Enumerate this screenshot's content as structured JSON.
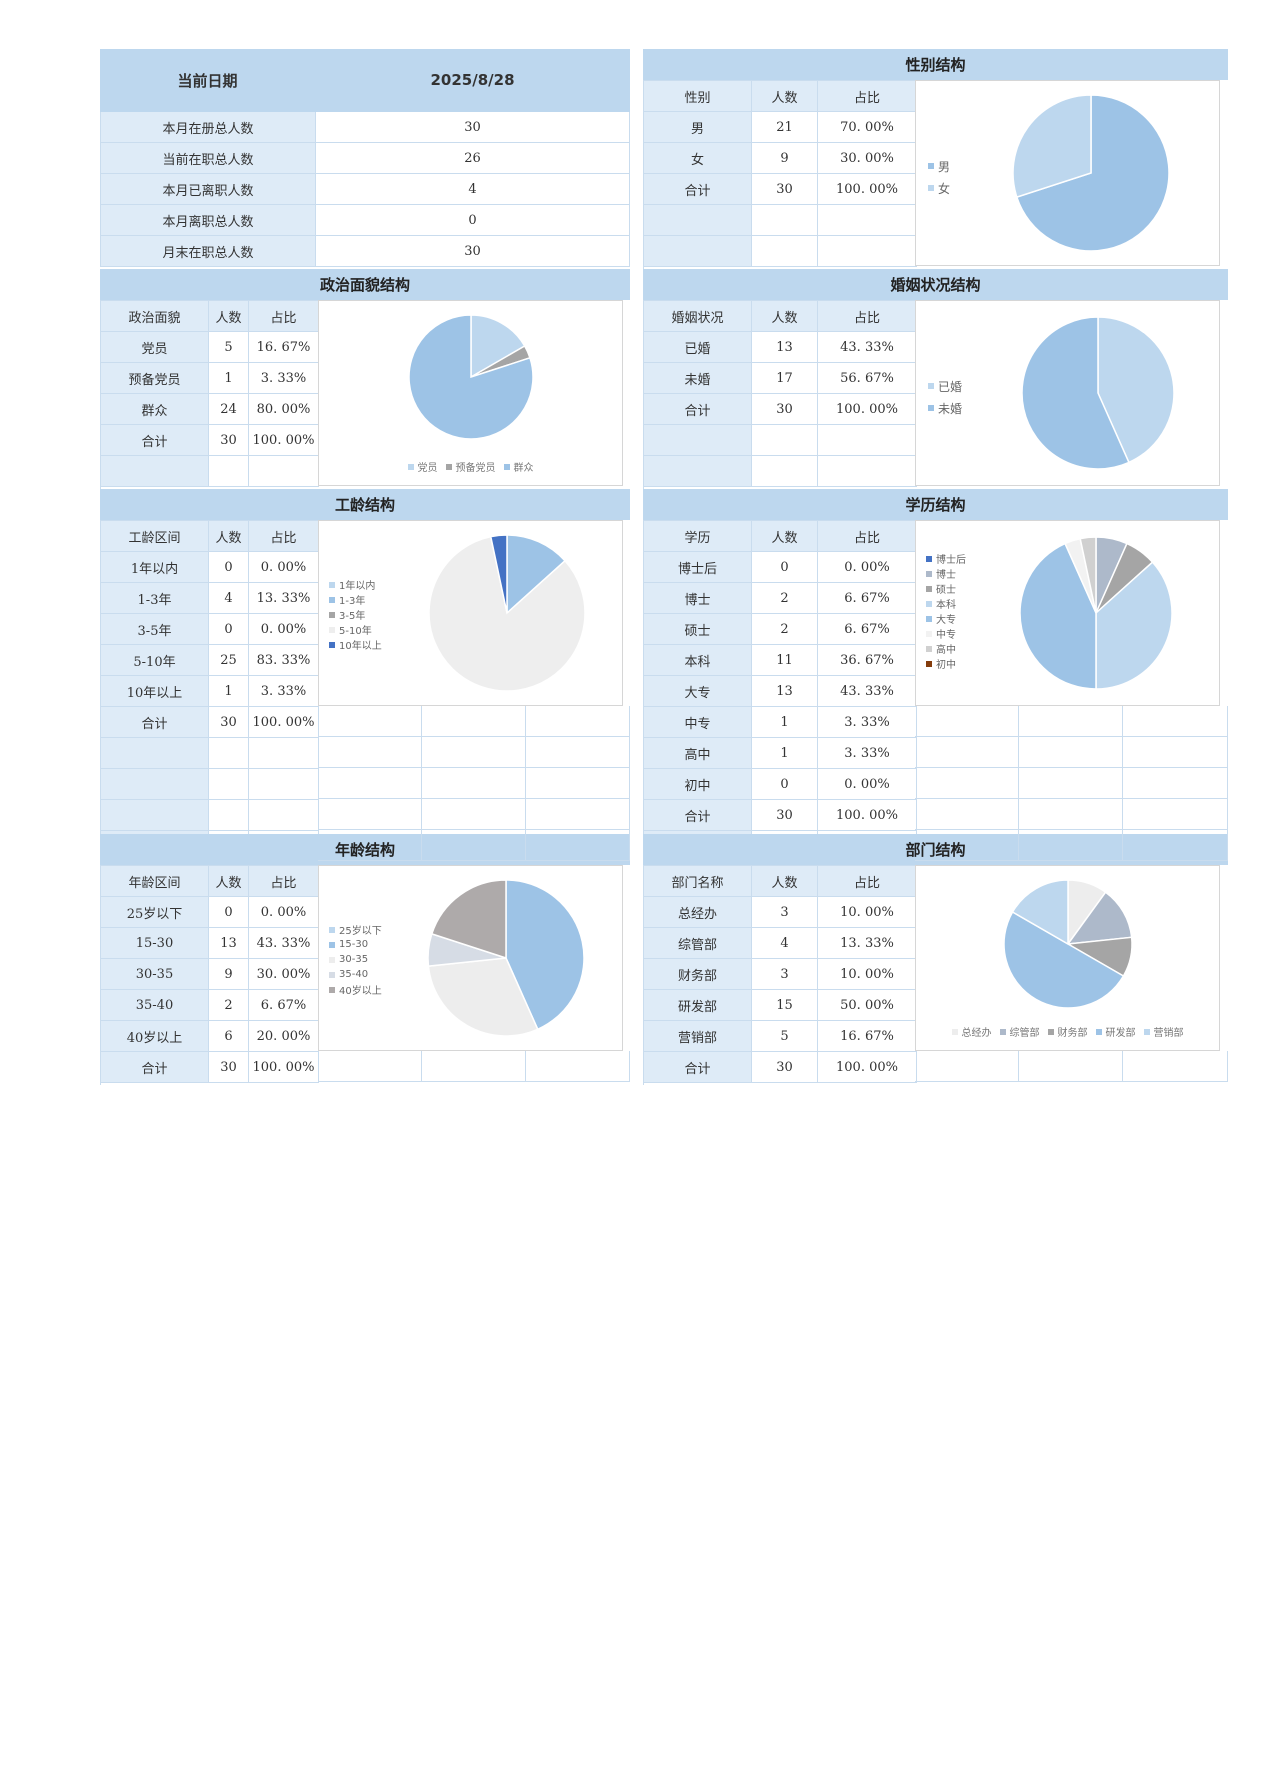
{
  "summary": {
    "date_label": "当前日期",
    "date_value": "2025/8/28",
    "rows": [
      {
        "label": "本月在册总人数",
        "value": "30"
      },
      {
        "label": "当前在职总人数",
        "value": "26"
      },
      {
        "label": "本月已离职人数",
        "value": "4"
      },
      {
        "label": "本月离职总人数",
        "value": "0"
      },
      {
        "label": "月末在职总人数",
        "value": "30"
      }
    ]
  },
  "sections": {
    "gender": {
      "title": "性别结构",
      "headers": [
        "性别",
        "人数",
        "占比"
      ],
      "rows": [
        [
          "男",
          "21",
          "70. 00%"
        ],
        [
          "女",
          "9",
          "30. 00%"
        ],
        [
          "合计",
          "30",
          "100. 00%"
        ]
      ]
    },
    "political": {
      "title": "政治面貌结构",
      "headers": [
        "政治面貌",
        "人数",
        "占比"
      ],
      "rows": [
        [
          "党员",
          "5",
          "16. 67%"
        ],
        [
          "预备党员",
          "1",
          "3. 33%"
        ],
        [
          "群众",
          "24",
          "80. 00%"
        ],
        [
          "合计",
          "30",
          "100. 00%"
        ]
      ]
    },
    "marital": {
      "title": "婚姻状况结构",
      "headers": [
        "婚姻状况",
        "人数",
        "占比"
      ],
      "rows": [
        [
          "已婚",
          "13",
          "43. 33%"
        ],
        [
          "未婚",
          "17",
          "56. 67%"
        ],
        [
          "合计",
          "30",
          "100. 00%"
        ]
      ]
    },
    "tenure": {
      "title": "工龄结构",
      "headers": [
        "工龄区间",
        "人数",
        "占比"
      ],
      "rows": [
        [
          "1年以内",
          "0",
          "0. 00%"
        ],
        [
          "1-3年",
          "4",
          "13. 33%"
        ],
        [
          "3-5年",
          "0",
          "0. 00%"
        ],
        [
          "5-10年",
          "25",
          "83. 33%"
        ],
        [
          "10年以上",
          "1",
          "3. 33%"
        ],
        [
          "合计",
          "30",
          "100. 00%"
        ]
      ]
    },
    "education": {
      "title": "学历结构",
      "headers": [
        "学历",
        "人数",
        "占比"
      ],
      "rows": [
        [
          "博士后",
          "0",
          "0. 00%"
        ],
        [
          "博士",
          "2",
          "6. 67%"
        ],
        [
          "硕士",
          "2",
          "6. 67%"
        ],
        [
          "本科",
          "11",
          "36. 67%"
        ],
        [
          "大专",
          "13",
          "43. 33%"
        ],
        [
          "中专",
          "1",
          "3. 33%"
        ],
        [
          "高中",
          "1",
          "3. 33%"
        ],
        [
          "初中",
          "0",
          "0. 00%"
        ],
        [
          "合计",
          "30",
          "100. 00%"
        ]
      ]
    },
    "age": {
      "title": "年龄结构",
      "headers": [
        "年龄区间",
        "人数",
        "占比"
      ],
      "rows": [
        [
          "25岁以下",
          "0",
          "0. 00%"
        ],
        [
          "15-30",
          "13",
          "43. 33%"
        ],
        [
          "30-35",
          "9",
          "30. 00%"
        ],
        [
          "35-40",
          "2",
          "6. 67%"
        ],
        [
          "40岁以上",
          "6",
          "20. 00%"
        ],
        [
          "合计",
          "30",
          "100. 00%"
        ]
      ]
    },
    "department": {
      "title": "部门结构",
      "headers": [
        "部门名称",
        "人数",
        "占比"
      ],
      "rows": [
        [
          "总经办",
          "3",
          "10. 00%"
        ],
        [
          "综管部",
          "4",
          "13. 33%"
        ],
        [
          "财务部",
          "3",
          "10. 00%"
        ],
        [
          "研发部",
          "15",
          "50. 00%"
        ],
        [
          "营销部",
          "5",
          "16. 67%"
        ],
        [
          "合计",
          "30",
          "100. 00%"
        ]
      ]
    }
  },
  "chart_data": [
    {
      "id": "gender",
      "type": "pie",
      "title": "",
      "categories": [
        "男",
        "女"
      ],
      "values": [
        21,
        9
      ],
      "colors": [
        "#9dc3e6",
        "#bdd7ee"
      ],
      "legend": "left"
    },
    {
      "id": "political",
      "type": "pie",
      "title": "",
      "categories": [
        "党员",
        "预备党员",
        "群众"
      ],
      "values": [
        5,
        1,
        24
      ],
      "colors": [
        "#bdd7ee",
        "#a5a5a5",
        "#9dc3e6"
      ],
      "legend": "bottom"
    },
    {
      "id": "marital",
      "type": "pie",
      "title": "",
      "categories": [
        "已婚",
        "未婚"
      ],
      "values": [
        13,
        17
      ],
      "colors": [
        "#bdd7ee",
        "#9dc3e6"
      ],
      "legend": "left"
    },
    {
      "id": "tenure",
      "type": "pie",
      "title": "",
      "categories": [
        "1年以内",
        "1-3年",
        "3-5年",
        "5-10年",
        "10年以上"
      ],
      "values": [
        0,
        4,
        0,
        25,
        1
      ],
      "colors": [
        "#bdd7ee",
        "#9dc3e6",
        "#a5a5a5",
        "#eeeeee",
        "#4472c4"
      ],
      "legend": "left"
    },
    {
      "id": "education",
      "type": "pie",
      "title": "",
      "categories": [
        "博士后",
        "博士",
        "硕士",
        "本科",
        "大专",
        "中专",
        "高中",
        "初中"
      ],
      "values": [
        0,
        2,
        2,
        11,
        13,
        1,
        1,
        0
      ],
      "colors": [
        "#4472c4",
        "#adb9ca",
        "#a5a5a5",
        "#bdd7ee",
        "#9dc3e6",
        "#f2f2f2",
        "#d0d0d0",
        "#843c0c"
      ],
      "legend": "left"
    },
    {
      "id": "age",
      "type": "pie",
      "title": "",
      "categories": [
        "25岁以下",
        "15-30",
        "30-35",
        "35-40",
        "40岁以上"
      ],
      "values": [
        0,
        13,
        9,
        2,
        6
      ],
      "colors": [
        "#bdd7ee",
        "#9dc3e6",
        "#ededed",
        "#d6dce5",
        "#aeaaaa"
      ],
      "legend": "left"
    },
    {
      "id": "department",
      "type": "pie",
      "title": "",
      "categories": [
        "总经办",
        "综管部",
        "财务部",
        "研发部",
        "营销部"
      ],
      "values": [
        3,
        4,
        3,
        15,
        5
      ],
      "colors": [
        "#ededed",
        "#adb9ca",
        "#a5a5a5",
        "#9dc3e6",
        "#bdd7ee"
      ],
      "legend": "bottom"
    }
  ]
}
